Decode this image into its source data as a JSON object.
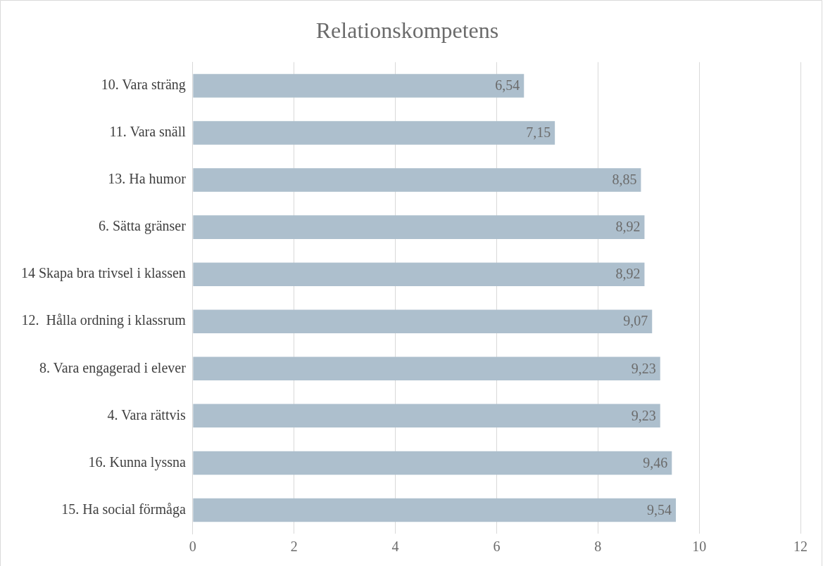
{
  "chart_data": {
    "type": "bar",
    "orientation": "horizontal",
    "title": "Relationskompetens",
    "categories": [
      "10. Vara sträng",
      "11. Vara snäll",
      "13. Ha humor",
      "6. Sätta gränser",
      "14 Skapa bra trivsel i klassen",
      "12.  Hålla ordning i klassrum",
      "8. Vara engagerad i elever",
      "4. Vara rättvis",
      "16. Kunna lyssna",
      "15. Ha social förmåga"
    ],
    "values": [
      6.54,
      7.15,
      8.85,
      8.92,
      8.92,
      9.07,
      9.23,
      9.23,
      9.46,
      9.54
    ],
    "value_labels": [
      "6,54",
      "7,15",
      "8,85",
      "8,92",
      "8,92",
      "9,07",
      "9,23",
      "9,23",
      "9,46",
      "9,54"
    ],
    "color": "#adbfcd",
    "xlim": [
      0,
      12
    ],
    "xticks": [
      0,
      2,
      4,
      6,
      8,
      10,
      12
    ],
    "grid": "x",
    "legend": false
  }
}
